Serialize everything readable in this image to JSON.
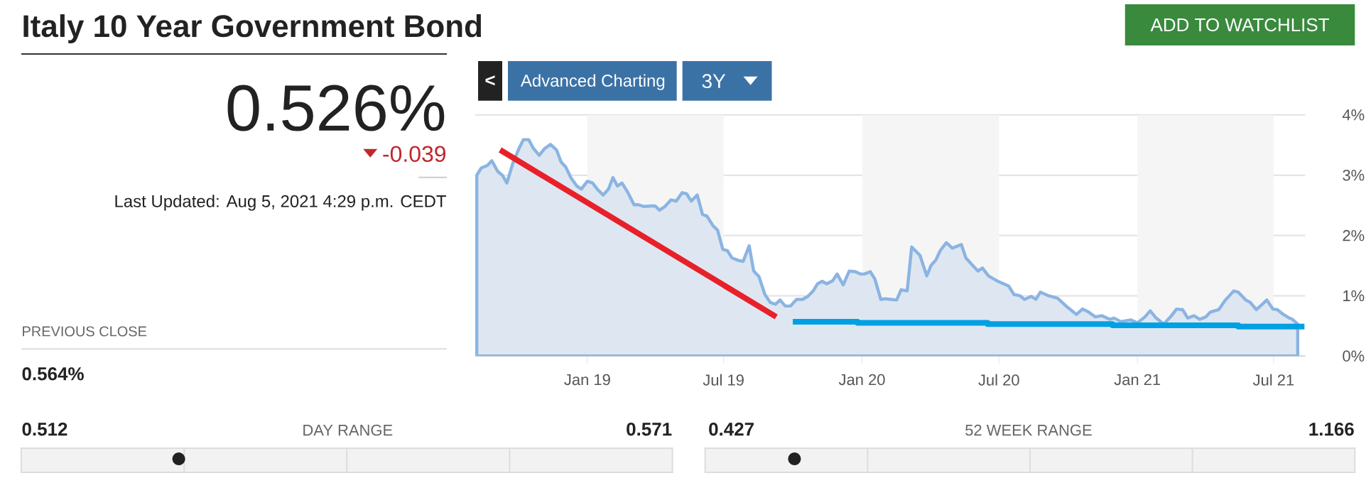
{
  "chart_data": {
    "type": "area",
    "title": "Italy 10 Year Government Bond",
    "xlim": [
      "2018-08-05",
      "2021-08-12"
    ],
    "xticks": [
      {
        "value": "2019-01-01",
        "label": "Jan 19"
      },
      {
        "value": "2019-07-01",
        "label": "Jul 19"
      },
      {
        "value": "2020-01-01",
        "label": "Jan 20"
      },
      {
        "value": "2020-07-01",
        "label": "Jul 20"
      },
      {
        "value": "2021-01-01",
        "label": "Jan 21"
      },
      {
        "value": "2021-07-01",
        "label": "Jul 21"
      }
    ],
    "ylim": [
      0,
      4
    ],
    "yticks": [
      {
        "value": 0,
        "label": "0%"
      },
      {
        "value": 1,
        "label": "1%"
      },
      {
        "value": 2,
        "label": "2%"
      },
      {
        "value": 3,
        "label": "3%"
      },
      {
        "value": 4,
        "label": "4%"
      }
    ],
    "grid": "y",
    "marker": "none",
    "line_style": "solid",
    "bands": [
      {
        "axis": "x",
        "from": "2019-01-01",
        "to": "2019-07-01",
        "color": "#f5f5f5"
      },
      {
        "axis": "x",
        "from": "2020-01-01",
        "to": "2020-07-01",
        "color": "#f5f5f5"
      },
      {
        "axis": "x",
        "from": "2021-01-01",
        "to": "2021-07-01",
        "color": "#f5f5f5"
      }
    ],
    "series": [
      {
        "color": "#dee7f1",
        "x": [
          "2018-08-07",
          "2018-08-13",
          "2018-08-21",
          "2018-08-27",
          "2018-09-04",
          "2018-09-10",
          "2018-09-16",
          "2018-09-24",
          "2018-10-02",
          "2018-10-08",
          "2018-10-15",
          "2018-10-21",
          "2018-10-29",
          "2018-11-05",
          "2018-11-13",
          "2018-11-21",
          "2018-11-27",
          "2018-12-03",
          "2018-12-10",
          "2018-12-18",
          "2018-12-24",
          "2019-01-01",
          "2019-01-08",
          "2019-01-14",
          "2019-01-22",
          "2019-01-29",
          "2019-02-04",
          "2019-02-10",
          "2019-02-16",
          "2019-02-23",
          "2019-03-04",
          "2019-03-10",
          "2019-03-17",
          "2019-03-26",
          "2019-04-01",
          "2019-04-07",
          "2019-04-14",
          "2019-04-22",
          "2019-04-29",
          "2019-05-07",
          "2019-05-13",
          "2019-05-19",
          "2019-05-27",
          "2019-06-03",
          "2019-06-09",
          "2019-06-17",
          "2019-06-23",
          "2019-06-30",
          "2019-07-06",
          "2019-07-12",
          "2019-07-20",
          "2019-07-27",
          "2019-08-04",
          "2019-08-10",
          "2019-08-17",
          "2019-08-25",
          "2019-09-01",
          "2019-09-08",
          "2019-09-14",
          "2019-09-21",
          "2019-09-28",
          "2019-10-06",
          "2019-10-14",
          "2019-10-21",
          "2019-10-28",
          "2019-11-03",
          "2019-11-09",
          "2019-11-15",
          "2019-11-23",
          "2019-11-29",
          "2019-12-07",
          "2019-12-15",
          "2019-12-23",
          "2019-12-30",
          "2020-01-04",
          "2020-01-12",
          "2020-01-18",
          "2020-01-26",
          "2020-02-01",
          "2020-02-08",
          "2020-02-16",
          "2020-02-22",
          "2020-03-01",
          "2020-03-07",
          "2020-03-18",
          "2020-03-27",
          "2020-04-02",
          "2020-04-08",
          "2020-04-14",
          "2020-04-22",
          "2020-04-30",
          "2020-05-12",
          "2020-05-18",
          "2020-05-28",
          "2020-06-03",
          "2020-06-09",
          "2020-06-17",
          "2020-06-28",
          "2020-07-14",
          "2020-07-21",
          "2020-07-29",
          "2020-08-04",
          "2020-08-13",
          "2020-08-19",
          "2020-08-25",
          "2020-09-05",
          "2020-09-17",
          "2020-09-30",
          "2020-10-12",
          "2020-10-20",
          "2020-10-28",
          "2020-11-06",
          "2020-11-15",
          "2020-11-25",
          "2020-12-01",
          "2020-12-10",
          "2020-12-23",
          "2021-01-01",
          "2021-01-11",
          "2021-01-18",
          "2021-01-26",
          "2021-02-05",
          "2021-02-14",
          "2021-02-22",
          "2021-03-02",
          "2021-03-09",
          "2021-03-17",
          "2021-03-25",
          "2021-04-02",
          "2021-04-08",
          "2021-04-19",
          "2021-04-28",
          "2021-05-09",
          "2021-05-15",
          "2021-05-25",
          "2021-05-31",
          "2021-06-08",
          "2021-06-16",
          "2021-06-22",
          "2021-06-30",
          "2021-07-06",
          "2021-07-14",
          "2021-07-22",
          "2021-07-26",
          "2021-08-02"
        ],
        "values": [
          3.0,
          3.12,
          3.16,
          3.24,
          3.06,
          3.0,
          2.87,
          3.2,
          3.44,
          3.59,
          3.59,
          3.45,
          3.33,
          3.44,
          3.51,
          3.42,
          3.22,
          3.14,
          2.96,
          2.82,
          2.77,
          2.9,
          2.87,
          2.77,
          2.67,
          2.77,
          2.96,
          2.82,
          2.87,
          2.73,
          2.51,
          2.51,
          2.48,
          2.49,
          2.49,
          2.42,
          2.48,
          2.59,
          2.57,
          2.71,
          2.69,
          2.57,
          2.67,
          2.35,
          2.32,
          2.16,
          2.09,
          1.77,
          1.75,
          1.63,
          1.59,
          1.57,
          1.83,
          1.41,
          1.32,
          1.02,
          0.89,
          0.86,
          0.93,
          0.83,
          0.83,
          0.94,
          0.94,
          0.99,
          1.08,
          1.2,
          1.24,
          1.2,
          1.25,
          1.36,
          1.18,
          1.41,
          1.4,
          1.36,
          1.36,
          1.4,
          1.28,
          0.94,
          0.95,
          0.94,
          0.93,
          1.1,
          1.08,
          1.81,
          1.67,
          1.33,
          1.51,
          1.59,
          1.75,
          1.88,
          1.79,
          1.85,
          1.63,
          1.49,
          1.41,
          1.46,
          1.33,
          1.25,
          1.16,
          1.02,
          1.0,
          0.94,
          0.99,
          0.94,
          1.06,
          1.0,
          0.96,
          0.81,
          0.69,
          0.78,
          0.73,
          0.65,
          0.67,
          0.61,
          0.63,
          0.57,
          0.6,
          0.55,
          0.65,
          0.75,
          0.63,
          0.53,
          0.65,
          0.78,
          0.77,
          0.63,
          0.67,
          0.61,
          0.65,
          0.73,
          0.77,
          0.93,
          1.08,
          1.06,
          0.93,
          0.89,
          0.77,
          0.86,
          0.93,
          0.78,
          0.77,
          0.69,
          0.63,
          0.61,
          0.53
        ]
      },
      {
        "type": "line",
        "color": "#e8202a",
        "x": [
          "2018-09-07",
          "2019-09-09"
        ],
        "values": [
          3.42,
          0.65
        ]
      },
      {
        "type": "step",
        "color": "#00a0e3",
        "x": [
          "2019-10-01",
          "2019-12-26",
          "2020-06-16",
          "2020-11-29",
          "2021-05-15",
          "2021-08-11"
        ],
        "values": [
          0.57,
          0.55,
          0.53,
          0.51,
          0.49,
          0.49
        ]
      }
    ],
    "annotations": [
      "ADD TO WATCHLIST",
      "<",
      "Advanced Charting",
      "3Y",
      "0.526%",
      "-0.039",
      "Last Updated: Aug 5, 2021 4:29 p.m. CEDT",
      "PREVIOUS CLOSE",
      "0.564%",
      "0.512",
      "DAY RANGE",
      "0.571",
      "0.427",
      "52 WEEK RANGE",
      "1.166"
    ]
  }
}
